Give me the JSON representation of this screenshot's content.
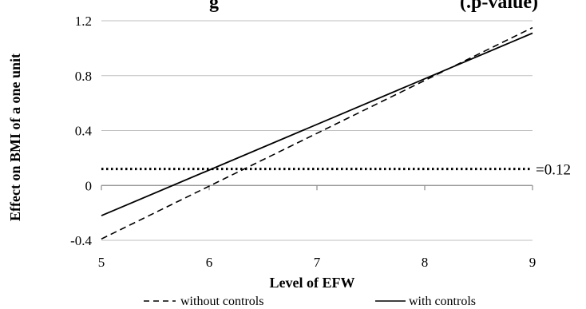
{
  "chart_data": {
    "type": "line",
    "title": "g",
    "title_right": "(.p-value)",
    "xlabel": "Level of EFW",
    "ylabel": "Effect on BMI of a one unit",
    "xlim": [
      5,
      9
    ],
    "ylim": [
      -0.4,
      1.2
    ],
    "x_ticks": [
      5,
      6,
      7,
      8,
      9
    ],
    "y_ticks": [
      {
        "value": -0.4,
        "label": "-0.4"
      },
      {
        "value": 0,
        "label": "0"
      },
      {
        "value": 0.4,
        "label": "0.4"
      },
      {
        "value": 0.8,
        "label": "0.8"
      },
      {
        "value": 1.2,
        "label": "1.2"
      }
    ],
    "grid": true,
    "legend_position": "bottom",
    "series": [
      {
        "name": "without controls",
        "style": "dashed",
        "x": [
          5,
          9
        ],
        "y": [
          -0.39,
          1.15
        ]
      },
      {
        "name": "with controls",
        "style": "solid",
        "x": [
          5,
          9
        ],
        "y": [
          -0.22,
          1.11
        ]
      }
    ],
    "reference_line": {
      "y": 0.12,
      "style": "dotted",
      "label": "=0.12"
    }
  }
}
